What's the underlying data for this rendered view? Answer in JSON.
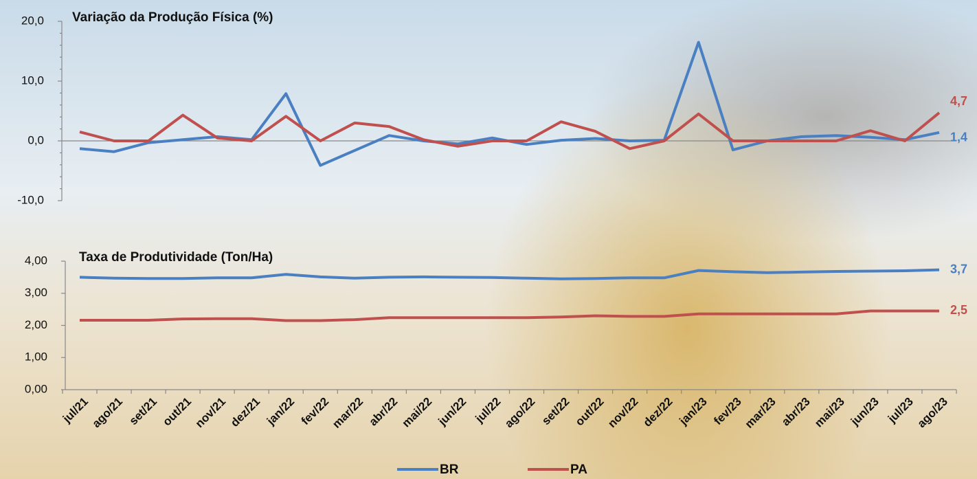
{
  "chart_data": [
    {
      "type": "line",
      "title": "Variação da Produção Física (%)",
      "ylim": [
        -10,
        20
      ],
      "yticks": [
        {
          "value": -10,
          "label": "-10,0"
        },
        {
          "value": 0,
          "label": "0,0"
        },
        {
          "value": 10,
          "label": "10,0"
        },
        {
          "value": 20,
          "label": "20,0"
        }
      ],
      "series": [
        {
          "color": "#4a7fc1",
          "values": [
            -1.3,
            -1.8,
            -0.3,
            0.2,
            0.7,
            0.2,
            7.9,
            -4.1,
            -1.6,
            0.9,
            0.0,
            -0.5,
            0.5,
            -0.6,
            0.1,
            0.4,
            0.0,
            0.1,
            16.5,
            -1.5,
            0.0,
            0.7,
            0.9,
            0.6,
            0.2,
            1.4
          ],
          "value_labels": [
            null,
            null,
            null,
            null,
            null,
            null,
            null,
            null,
            null,
            null,
            null,
            null,
            null,
            null,
            null,
            null,
            null,
            null,
            null,
            null,
            null,
            null,
            null,
            null,
            null,
            "1,4"
          ]
        },
        {
          "color": "#c0504d",
          "values": [
            1.5,
            0,
            0,
            4.3,
            0.5,
            0,
            4.1,
            0,
            3.0,
            2.4,
            0.2,
            -0.9,
            0,
            0,
            3.2,
            1.6,
            -1.3,
            0,
            4.5,
            0,
            0,
            0,
            0,
            1.7,
            0,
            4.7
          ],
          "value_labels": [
            null,
            null,
            null,
            null,
            null,
            null,
            null,
            null,
            null,
            null,
            null,
            null,
            null,
            null,
            null,
            null,
            null,
            null,
            null,
            null,
            null,
            null,
            null,
            null,
            null,
            "4,7"
          ]
        }
      ]
    },
    {
      "type": "line",
      "title": "Taxa de Produtividade (Ton/Ha)",
      "categories": [
        "jul/21",
        "ago/21",
        "set/21",
        "out/21",
        "nov/21",
        "dez/21",
        "jan/22",
        "fev/22",
        "mar/22",
        "abr/22",
        "mai/22",
        "jun/22",
        "jul/22",
        "ago/22",
        "set/22",
        "out/22",
        "nov/22",
        "dez/22",
        "jan/23",
        "fev/23",
        "mar/23",
        "abr/23",
        "mai/23",
        "jun/23",
        "jul/23",
        "ago/23"
      ],
      "ylim": [
        0,
        4
      ],
      "yticks": [
        {
          "value": 0,
          "label": "0,00"
        },
        {
          "value": 1,
          "label": "1,00"
        },
        {
          "value": 2,
          "label": "2,00"
        },
        {
          "value": 3,
          "label": "3,00"
        },
        {
          "value": 4,
          "label": "4,00"
        }
      ],
      "series": [
        {
          "name": "BR",
          "color": "#4a7fc1",
          "values": [
            3.5,
            3.47,
            3.46,
            3.46,
            3.48,
            3.48,
            3.59,
            3.51,
            3.47,
            3.5,
            3.51,
            3.5,
            3.49,
            3.47,
            3.45,
            3.46,
            3.48,
            3.48,
            3.71,
            3.67,
            3.64,
            3.66,
            3.68,
            3.69,
            3.7,
            3.73
          ],
          "value_labels": [
            null,
            null,
            null,
            null,
            null,
            null,
            null,
            null,
            null,
            null,
            null,
            null,
            null,
            null,
            null,
            null,
            null,
            null,
            null,
            null,
            null,
            null,
            null,
            null,
            null,
            "3,7"
          ]
        },
        {
          "name": "PA",
          "color": "#c0504d",
          "values": [
            2.16,
            2.16,
            2.16,
            2.2,
            2.21,
            2.21,
            2.15,
            2.15,
            2.18,
            2.24,
            2.24,
            2.24,
            2.24,
            2.24,
            2.26,
            2.3,
            2.28,
            2.28,
            2.36,
            2.36,
            2.36,
            2.36,
            2.36,
            2.45,
            2.45,
            2.45
          ],
          "value_labels": [
            null,
            null,
            null,
            null,
            null,
            null,
            null,
            null,
            null,
            null,
            null,
            null,
            null,
            null,
            null,
            null,
            null,
            null,
            null,
            null,
            null,
            null,
            null,
            null,
            null,
            "2,5"
          ]
        }
      ],
      "legend": "bottom"
    }
  ]
}
